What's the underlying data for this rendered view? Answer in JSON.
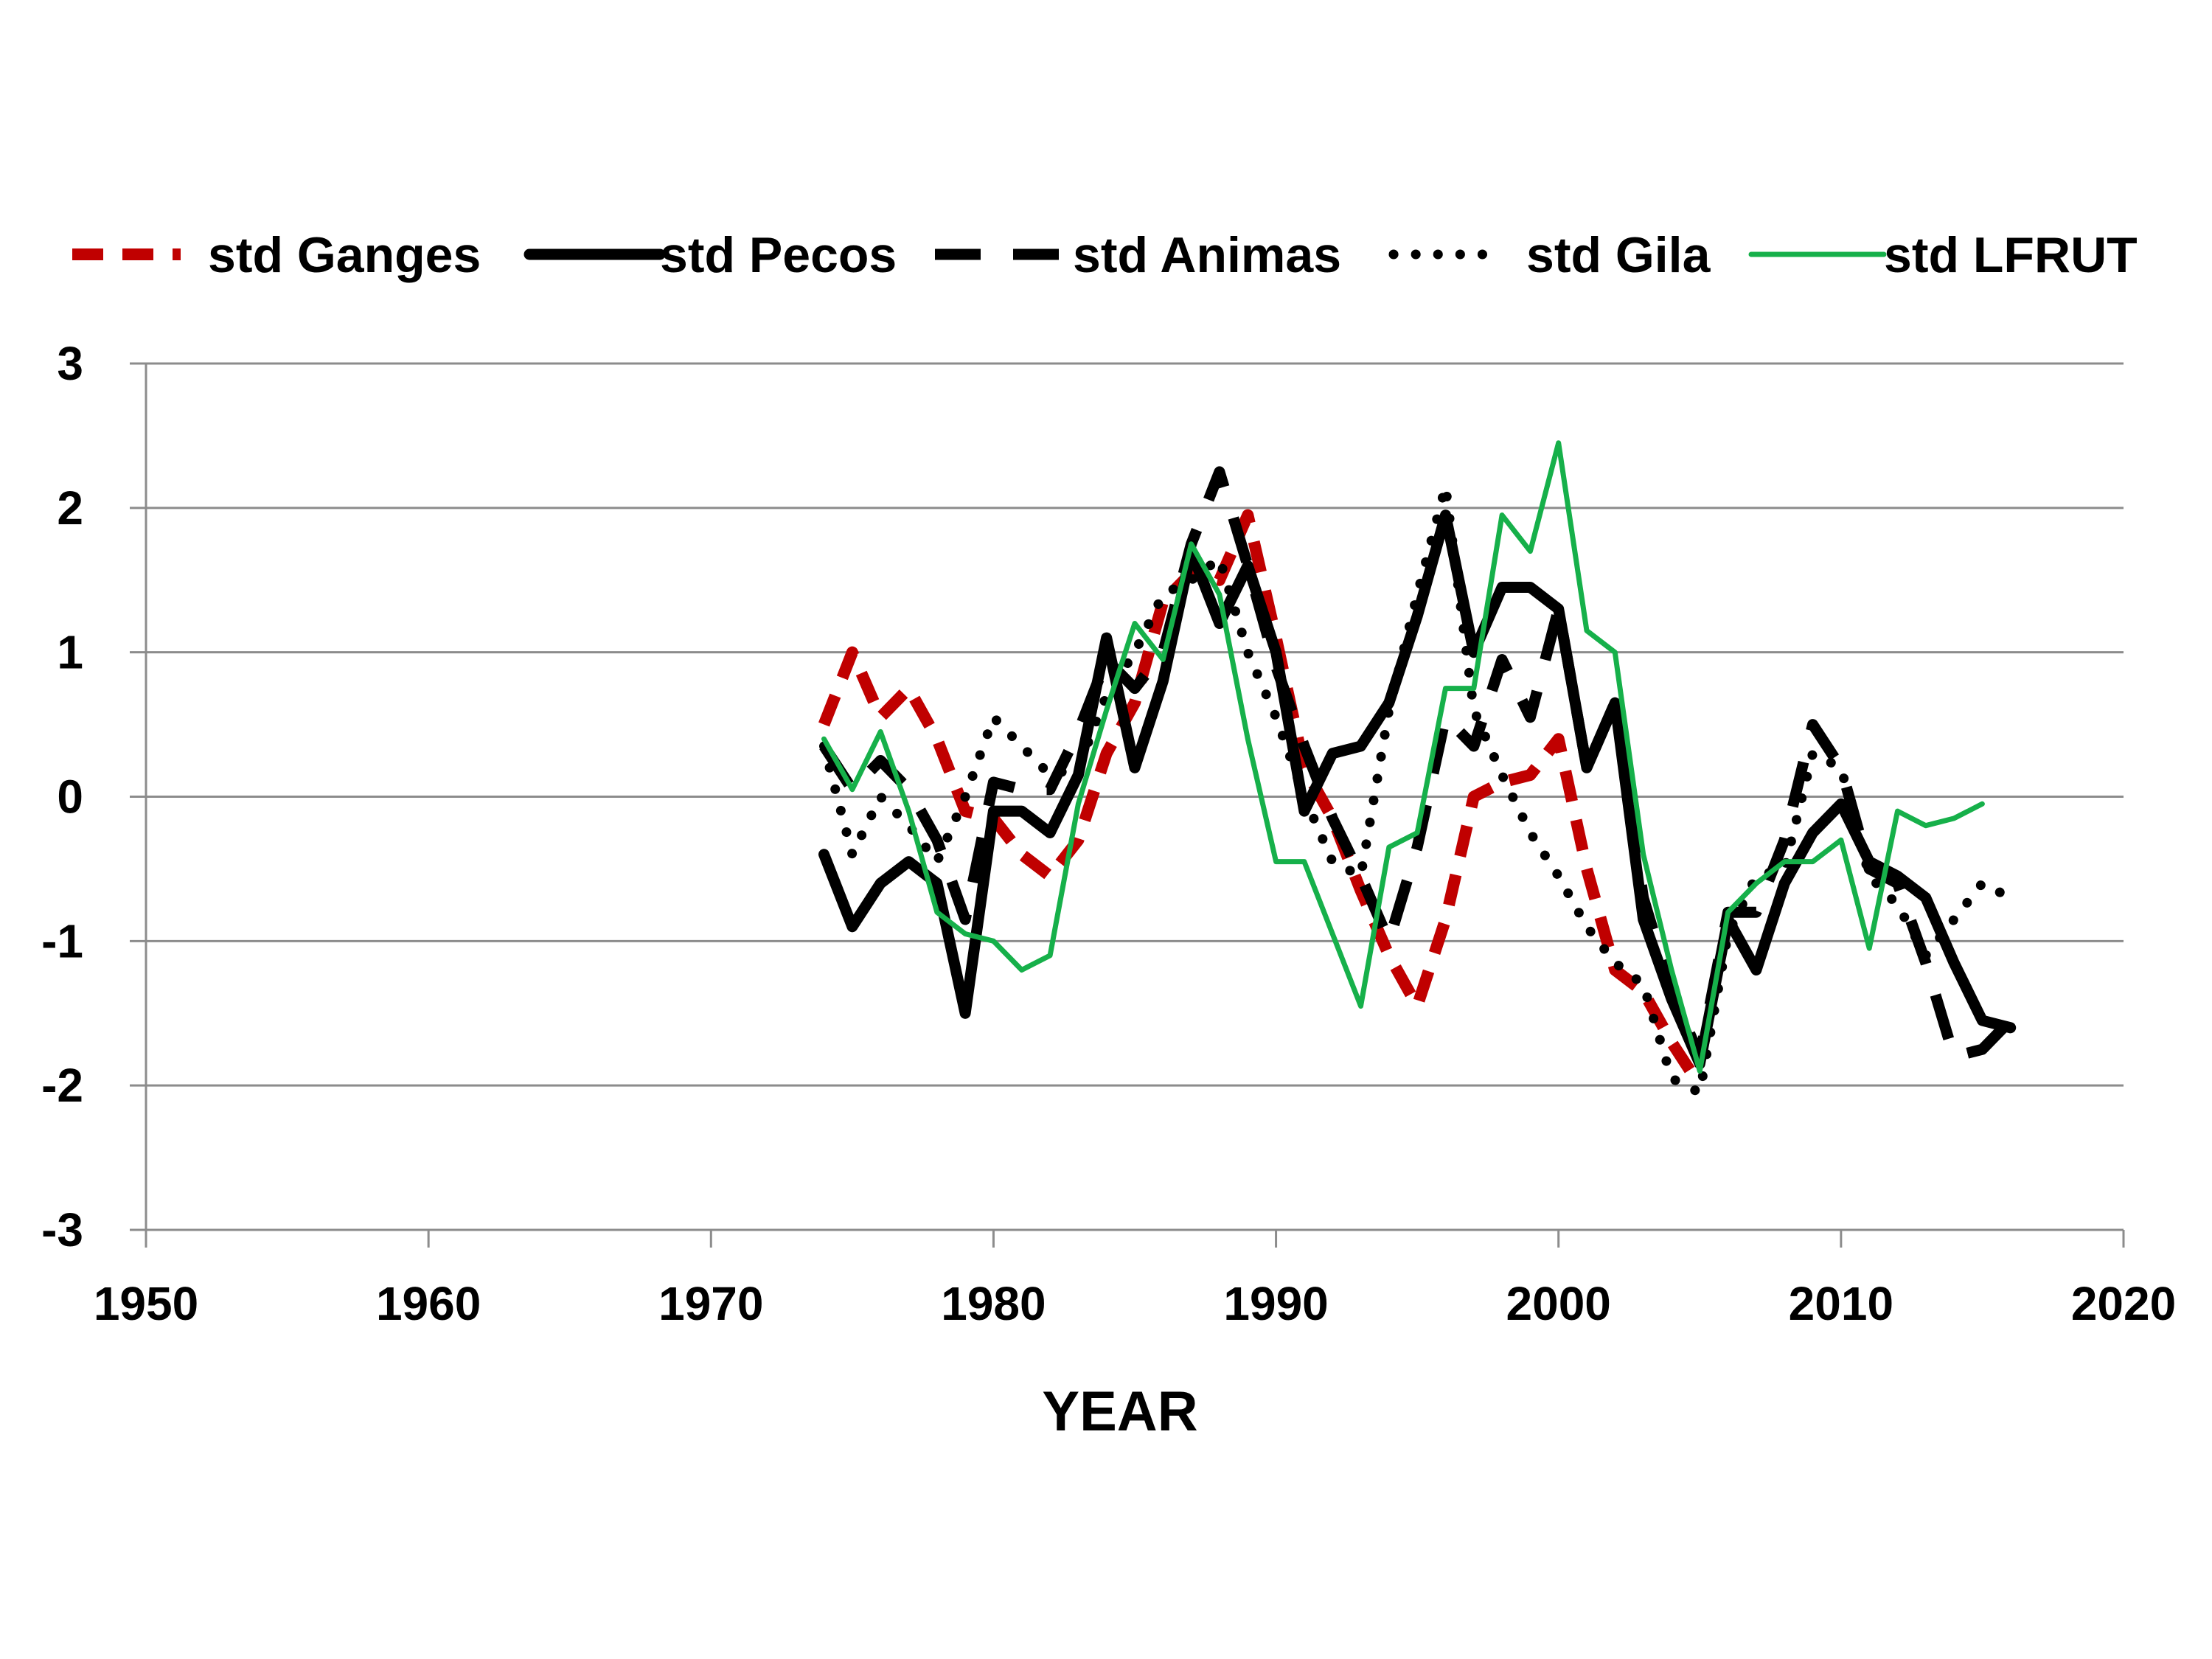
{
  "chart_data": {
    "type": "line",
    "title": "",
    "xlabel": "YEAR",
    "ylabel": "",
    "xlim": [
      1950,
      2020
    ],
    "ylim": [
      -3,
      3
    ],
    "x_ticks": [
      1950,
      1960,
      1970,
      1980,
      1990,
      2000,
      2010,
      2020
    ],
    "y_ticks": [
      3,
      2,
      1,
      0,
      -1,
      -2,
      -3
    ],
    "grid": "horizontal",
    "legend_position": "top",
    "series": [
      {
        "name": "std Ganges",
        "color": "#c00000",
        "style": "dashed",
        "x": [
          1974,
          1975,
          1976,
          1977,
          1978,
          1979,
          1980,
          1981,
          1982,
          1983,
          1984,
          1985,
          1986,
          1987,
          1988,
          1989,
          1990,
          1991,
          1992,
          1993,
          1994,
          1995,
          1996,
          1997,
          1998,
          1999,
          2000,
          2001,
          2002,
          2003,
          2004,
          2005
        ],
        "y": [
          0.5,
          1.0,
          0.55,
          0.75,
          0.4,
          -0.1,
          -0.15,
          -0.4,
          -0.55,
          -0.3,
          0.3,
          0.65,
          1.35,
          1.55,
          1.5,
          1.95,
          1.1,
          0.2,
          -0.15,
          -0.65,
          -1.1,
          -1.45,
          -0.85,
          0.0,
          0.1,
          0.15,
          0.4,
          -0.5,
          -1.2,
          -1.35,
          -1.7,
          -2.0
        ]
      },
      {
        "name": "std Pecos",
        "color": "#000000",
        "style": "solid",
        "x": [
          1974,
          1975,
          1976,
          1977,
          1978,
          1979,
          1980,
          1981,
          1982,
          1983,
          1984,
          1985,
          1986,
          1987,
          1988,
          1989,
          1990,
          1991,
          1992,
          1993,
          1994,
          1995,
          1996,
          1997,
          1998,
          1999,
          2000,
          2001,
          2002,
          2003,
          2004,
          2005,
          2006,
          2007,
          2008,
          2009,
          2010,
          2011,
          2012,
          2013,
          2014,
          2015,
          2016
        ],
        "y": [
          -0.4,
          -0.9,
          -0.6,
          -0.45,
          -0.6,
          -1.5,
          -0.1,
          -0.1,
          -0.25,
          0.15,
          1.1,
          0.2,
          0.8,
          1.7,
          1.2,
          1.6,
          1.0,
          -0.1,
          0.3,
          0.35,
          0.65,
          1.25,
          1.95,
          1.0,
          1.45,
          1.45,
          1.3,
          0.2,
          0.65,
          -0.85,
          -1.4,
          -1.85,
          -0.85,
          -1.2,
          -0.6,
          -0.25,
          -0.05,
          -0.45,
          -0.55,
          -0.7,
          -1.15,
          -1.55,
          -1.6
        ]
      },
      {
        "name": "std Animas",
        "color": "#000000",
        "style": "longdash",
        "x": [
          1974,
          1975,
          1976,
          1977,
          1978,
          1979,
          1980,
          1981,
          1982,
          1983,
          1984,
          1985,
          1986,
          1987,
          1988,
          1989,
          1990,
          1991,
          1992,
          1993,
          1994,
          1995,
          1996,
          1997,
          1998,
          1999,
          2000,
          2001,
          2002,
          2003,
          2004,
          2005,
          2006,
          2007,
          2008,
          2009,
          2010,
          2011,
          2012,
          2013,
          2014,
          2015,
          2016
        ],
        "y": [
          0.35,
          0.05,
          0.25,
          0.05,
          -0.3,
          -0.85,
          0.1,
          0.05,
          0.05,
          0.45,
          0.95,
          0.75,
          1.0,
          1.75,
          2.25,
          1.6,
          0.9,
          0.35,
          -0.15,
          -0.55,
          -1.0,
          -0.35,
          0.55,
          0.35,
          0.95,
          0.55,
          1.3,
          0.2,
          0.65,
          -0.7,
          -1.35,
          -1.8,
          -0.8,
          -0.8,
          -0.3,
          0.5,
          0.2,
          -0.5,
          -0.6,
          -1.15,
          -1.8,
          -1.75,
          -1.55
        ]
      },
      {
        "name": "std Gila",
        "color": "#000000",
        "style": "dotted",
        "x": [
          1974,
          1975,
          1976,
          1977,
          1978,
          1979,
          1980,
          1981,
          1982,
          1983,
          1984,
          1985,
          1986,
          1987,
          1988,
          1989,
          1990,
          1991,
          1992,
          1993,
          1994,
          1995,
          1996,
          1997,
          1998,
          1999,
          2000,
          2001,
          2002,
          2003,
          2004,
          2005,
          2006,
          2007,
          2008,
          2009,
          2010,
          2011,
          2012,
          2013,
          2014,
          2015,
          2016
        ],
        "y": [
          0.35,
          -0.4,
          0.0,
          -0.2,
          -0.45,
          0.0,
          0.55,
          0.35,
          0.15,
          0.2,
          0.7,
          1.0,
          1.4,
          1.5,
          1.65,
          1.0,
          0.55,
          0.0,
          -0.45,
          -0.55,
          0.6,
          1.4,
          2.15,
          0.6,
          0.15,
          -0.25,
          -0.55,
          -0.9,
          -1.15,
          -1.3,
          -1.95,
          -2.05,
          -0.95,
          -0.55,
          -0.5,
          0.3,
          0.2,
          -0.55,
          -0.75,
          -1.1,
          -0.85,
          -0.6,
          -0.7
        ]
      },
      {
        "name": "std LFRUT",
        "color": "#16b04a",
        "style": "solid-thin",
        "x": [
          1974,
          1975,
          1976,
          1977,
          1978,
          1979,
          1980,
          1981,
          1982,
          1983,
          1984,
          1985,
          1986,
          1987,
          1988,
          1989,
          1990,
          1991,
          1992,
          1993,
          1994,
          1995,
          1996,
          1997,
          1998,
          1999,
          2000,
          2001,
          2002,
          2003,
          2004,
          2005,
          2006,
          2007,
          2008,
          2009,
          2010,
          2011,
          2012,
          2013,
          2014,
          2015
        ],
        "y": [
          0.4,
          0.05,
          0.45,
          -0.1,
          -0.8,
          -0.95,
          -1.0,
          -1.2,
          -1.1,
          -0.05,
          0.6,
          1.2,
          0.95,
          1.75,
          1.4,
          0.4,
          -0.45,
          -0.45,
          -0.95,
          -1.45,
          -0.35,
          -0.25,
          0.75,
          0.75,
          1.95,
          1.7,
          2.45,
          1.15,
          1.0,
          -0.4,
          -1.2,
          -1.9,
          -0.8,
          -0.6,
          -0.45,
          -0.45,
          -0.3,
          -1.05,
          -0.1,
          -0.2,
          -0.15,
          -0.05
        ]
      }
    ]
  }
}
